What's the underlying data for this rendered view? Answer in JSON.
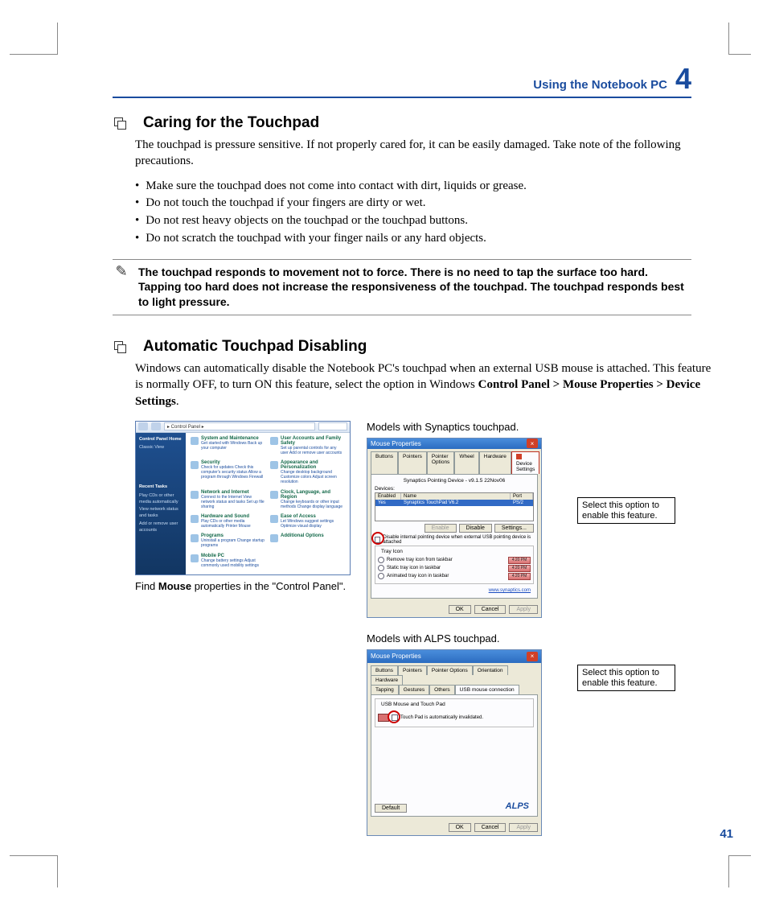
{
  "colors": {
    "accent": "#1a4c9e",
    "rule": "#888888",
    "highlight_circle": "#cc0000",
    "dialog_bg": "#ece9d8",
    "titlebar_start": "#4a8ddc",
    "titlebar_end": "#2b6cc0",
    "cp_sidebar_start": "#1e4f8f",
    "cp_sidebar_end": "#123662",
    "cp_link_green": "#14694a"
  },
  "header": {
    "section_label": "Using the Notebook PC",
    "chapter_number": "4"
  },
  "page_number": "41",
  "s1": {
    "title": "Caring for the Touchpad",
    "intro": "The touchpad is pressure sensitive. If not properly cared for, it can be easily damaged. Take note of the following precautions.",
    "bullets": [
      "Make sure the touchpad does not come into contact with dirt, liquids or grease.",
      "Do not touch the touchpad if your fingers are dirty or wet.",
      "Do not rest heavy objects on the touchpad or the touchpad buttons.",
      "Do not scratch the touchpad with your finger nails or any hard objects."
    ],
    "note": "The touchpad responds to movement not to force. There is no need to tap the surface too hard. Tapping too hard does not increase the responsiveness of the touchpad. The touchpad responds best to light pressure."
  },
  "s2": {
    "title": "Automatic Touchpad Disabling",
    "intro_pre": "Windows can automatically disable the Notebook PC's touchpad when an external USB mouse is attached. This feature is normally OFF, to turn ON this feature, select the option in Windows ",
    "intro_bold": "Control Panel > Mouse Properties > Device Settings",
    "intro_post": "."
  },
  "cp": {
    "breadcrumb": "▸ Control Panel ▸",
    "sidebar_title": "Control Panel Home",
    "sidebar_items": [
      "Classic View"
    ],
    "recent_title": "Recent Tasks",
    "recent_items": [
      "Play CDs or other media automatically",
      "View network status and tasks",
      "Add or remove user accounts"
    ],
    "items": [
      {
        "t": "System and Maintenance",
        "d": "Get started with Windows\nBack up your computer"
      },
      {
        "t": "User Accounts and Family Safety",
        "d": "Set up parental controls for any user\nAdd or remove user accounts"
      },
      {
        "t": "Security",
        "d": "Check for updates\nCheck this computer's security status\nAllow a program through Windows Firewall"
      },
      {
        "t": "Appearance and Personalization",
        "d": "Change desktop background\nCustomize colors\nAdjust screen resolution"
      },
      {
        "t": "Network and Internet",
        "d": "Connect to the Internet\nView network status and tasks\nSet up file sharing"
      },
      {
        "t": "Clock, Language, and Region",
        "d": "Change keyboards or other input methods\nChange display language"
      },
      {
        "t": "Hardware and Sound",
        "d": "Play CDs or other media automatically\nPrinter\nMouse"
      },
      {
        "t": "Ease of Access",
        "d": "Let Windows suggest settings\nOptimize visual display"
      },
      {
        "t": "Programs",
        "d": "Uninstall a program\nChange startup programs"
      },
      {
        "t": "Additional Options",
        "d": ""
      },
      {
        "t": "Mobile PC",
        "d": "Change battery settings\nAdjust commonly used mobility settings"
      }
    ],
    "caption_pre": "Find ",
    "caption_bold": "Mouse",
    "caption_post": " properties in the \"Control Panel\"."
  },
  "syn": {
    "caption": "Models with Synaptics touchpad.",
    "title": "Mouse Properties",
    "tabs": [
      "Buttons",
      "Pointers",
      "Pointer Options",
      "Wheel",
      "Hardware",
      "Device Settings"
    ],
    "subtitle": "Synaptics Pointing Device - v9.1.5 22Nov06",
    "devices_label": "Devices:",
    "th": [
      "Enabled",
      "Name",
      "Port"
    ],
    "row": [
      "Yes",
      "Synaptics TouchPad V6.2",
      "PS/2"
    ],
    "btns_mid": [
      "Enable",
      "Disable",
      "Settings..."
    ],
    "checkbox": "Disable internal pointing device when external USB pointing device is attached",
    "tray_title": "Tray Icon",
    "tray_opts": [
      "Remove tray icon from taskbar",
      "Static tray icon in taskbar",
      "Animated tray icon in taskbar"
    ],
    "tray_time": "4:20 PM",
    "link": "www.synaptics.com",
    "buttons": [
      "OK",
      "Cancel",
      "Apply"
    ]
  },
  "alps": {
    "caption": "Models with ALPS touchpad.",
    "title": "Mouse Properties",
    "tabs_top": [
      "Buttons",
      "Pointers",
      "Pointer Options",
      "Orientation",
      "Hardware"
    ],
    "tabs_bot": [
      "Tapping",
      "Gestures",
      "Others",
      "USB mouse connection"
    ],
    "group": "USB Mouse and Touch Pad",
    "checkbox": "Touch Pad is automatically invalidated.",
    "default_btn": "Default",
    "logo": "ALPS",
    "buttons": [
      "OK",
      "Cancel",
      "Apply"
    ]
  },
  "callout": "Select this option to enable this feature."
}
